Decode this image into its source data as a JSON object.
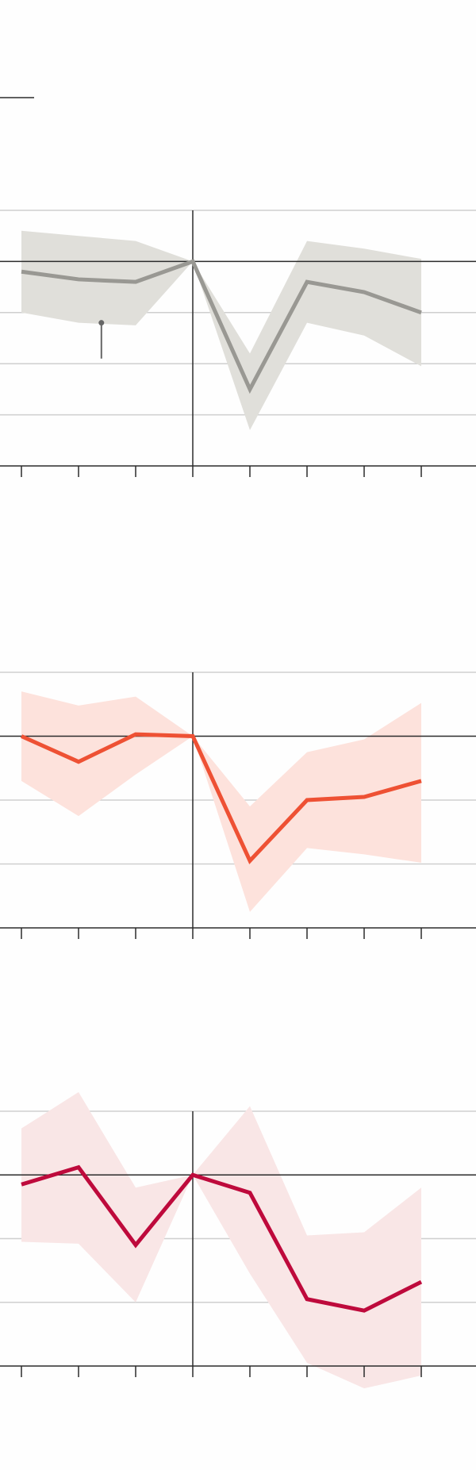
{
  "colors": {
    "background": "#fefefe",
    "gridline": "#cfcfcf",
    "baseline": "#2b2b2b",
    "axis": "#2b2b2b",
    "note_marker": "#666666"
  },
  "chart_data": [
    {
      "type": "line",
      "x": [
        -3,
        -2,
        -1,
        0,
        1,
        2,
        3,
        4
      ],
      "ylim": [
        -4,
        1
      ],
      "yticks": [
        -4,
        -3,
        -2,
        -1,
        0,
        1
      ],
      "baseline": 0,
      "grid": true,
      "series": [
        {
          "color": "#999893",
          "band_color": "#e0dfda",
          "values": [
            -0.2,
            -0.35,
            -0.4,
            0,
            -2.5,
            -0.4,
            -0.6,
            -1.0
          ],
          "upper": [
            0.6,
            0.5,
            0.4,
            0,
            -1.8,
            0.4,
            0.25,
            0.05
          ],
          "lower": [
            -1.0,
            -1.2,
            -1.25,
            0,
            -3.3,
            -1.2,
            -1.45,
            -2.05
          ]
        }
      ],
      "annotation_marker": {
        "x": -1.6,
        "y_from": -1.2,
        "y_to": -1.9
      }
    },
    {
      "type": "line",
      "x": [
        -3,
        -2,
        -1,
        0,
        1,
        2,
        3,
        4
      ],
      "ylim": [
        -3,
        1
      ],
      "yticks": [
        -3,
        -2,
        -1,
        0,
        1
      ],
      "baseline": 0,
      "grid": true,
      "series": [
        {
          "color": "#ee5134",
          "band_color": "#fde2dc",
          "values": [
            0,
            -0.4,
            0.03,
            0,
            -1.95,
            -1.0,
            -0.95,
            -0.7
          ],
          "upper": [
            0.7,
            0.48,
            0.62,
            0,
            -1.1,
            -0.25,
            -0.05,
            0.52
          ],
          "lower": [
            -0.7,
            -1.25,
            -0.6,
            0,
            -2.75,
            -1.75,
            -1.85,
            -1.98
          ]
        }
      ]
    },
    {
      "type": "line",
      "x": [
        -3,
        -2,
        -1,
        0,
        1,
        2,
        3,
        4
      ],
      "ylim": [
        -3,
        1
      ],
      "yticks": [
        -3,
        -2,
        -1,
        0,
        1
      ],
      "baseline": 0,
      "grid": true,
      "series": [
        {
          "color": "#be0a3c",
          "band_color": "#f9e6e6",
          "values": [
            -0.15,
            0.12,
            -1.1,
            0,
            -0.28,
            -1.95,
            -2.13,
            -1.68
          ],
          "upper": [
            0.73,
            1.3,
            -0.2,
            0,
            1.08,
            -0.95,
            -0.9,
            -0.2
          ],
          "lower": [
            -1.05,
            -1.08,
            -2.0,
            0,
            -1.55,
            -2.95,
            -3.35,
            -3.15
          ]
        }
      ]
    }
  ]
}
